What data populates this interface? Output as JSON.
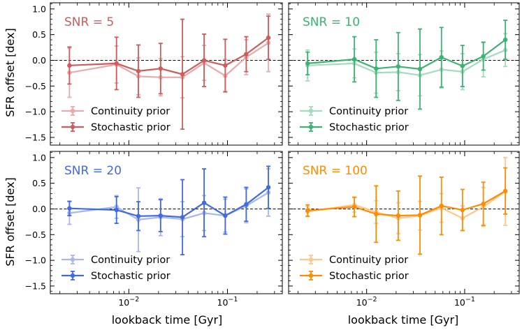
{
  "figure": {
    "ylabel": "SFR offset [dex]",
    "xlabel": "lookback time [Gyr]"
  },
  "chart_data": [
    {
      "type": "line",
      "panel_label": "SNR = 5",
      "xscale": "log",
      "xlim": [
        0.0016,
        0.36
      ],
      "ylim": [
        -1.65,
        1.12
      ],
      "reference_line_y": 0,
      "grid": false,
      "legend_position": "lower-left",
      "x": [
        0.0025,
        0.0075,
        0.0125,
        0.021,
        0.035,
        0.058,
        0.095,
        0.155,
        0.26
      ],
      "series": [
        {
          "name": "Continuity prior",
          "color": "#e8aaaa",
          "values": [
            -0.24,
            -0.08,
            -0.31,
            -0.33,
            -0.33,
            -0.05,
            -0.3,
            0.06,
            0.34
          ],
          "errors": [
            0.48,
            0.36,
            0.36,
            0.36,
            0.4,
            0.34,
            0.32,
            0.34,
            0.56
          ]
        },
        {
          "name": "Stochastic prior",
          "color": "#cd5c5c",
          "values": [
            -0.1,
            -0.06,
            -0.21,
            -0.16,
            -0.27,
            0.0,
            -0.1,
            0.12,
            0.44
          ],
          "errors": [
            0.36,
            0.51,
            0.51,
            0.49,
            1.07,
            0.51,
            0.51,
            0.34,
            0.42
          ]
        }
      ]
    },
    {
      "type": "line",
      "panel_label": "SNR = 10",
      "xscale": "log",
      "xlim": [
        0.0016,
        0.36
      ],
      "ylim": [
        -1.65,
        1.12
      ],
      "reference_line_y": 0,
      "grid": false,
      "legend_position": "lower-left",
      "x": [
        0.0025,
        0.0075,
        0.0125,
        0.021,
        0.035,
        0.058,
        0.095,
        0.155,
        0.26
      ],
      "series": [
        {
          "name": "Continuity prior",
          "color": "#a3dbbd",
          "values": [
            -0.1,
            -0.06,
            -0.24,
            -0.23,
            -0.29,
            -0.18,
            -0.22,
            0.02,
            0.2
          ],
          "errors": [
            0.3,
            0.28,
            0.4,
            0.36,
            0.4,
            0.36,
            0.35,
            0.34,
            0.32
          ]
        },
        {
          "name": "Stochastic prior",
          "color": "#3cb371",
          "values": [
            -0.06,
            0.02,
            -0.16,
            -0.12,
            -0.17,
            0.06,
            -0.11,
            0.08,
            0.4
          ],
          "errors": [
            0.22,
            0.44,
            0.56,
            0.66,
            0.78,
            0.58,
            0.4,
            0.27,
            0.38
          ]
        }
      ]
    },
    {
      "type": "line",
      "panel_label": "SNR = 20",
      "xscale": "log",
      "xlim": [
        0.0016,
        0.36
      ],
      "ylim": [
        -1.65,
        1.12
      ],
      "reference_line_y": 0,
      "grid": false,
      "legend_position": "lower-left",
      "x": [
        0.0025,
        0.0075,
        0.0125,
        0.021,
        0.035,
        0.058,
        0.095,
        0.155,
        0.26
      ],
      "series": [
        {
          "name": "Continuity prior",
          "color": "#a8b8ec",
          "values": [
            -0.08,
            0.04,
            -0.21,
            -0.16,
            -0.2,
            -0.08,
            -0.13,
            0.06,
            0.32
          ],
          "errors": [
            0.22,
            0.22,
            0.62,
            0.36,
            0.34,
            0.34,
            0.32,
            0.33,
            0.46
          ]
        },
        {
          "name": "Stochastic prior",
          "color": "#4169e1",
          "values": [
            0.01,
            -0.02,
            -0.14,
            -0.13,
            -0.16,
            0.12,
            -0.13,
            0.09,
            0.42
          ],
          "errors": [
            0.14,
            0.26,
            0.28,
            0.31,
            0.73,
            0.66,
            0.36,
            0.33,
            0.41
          ]
        }
      ]
    },
    {
      "type": "line",
      "panel_label": "SNR = 100",
      "xscale": "log",
      "xlim": [
        0.0016,
        0.36
      ],
      "ylim": [
        -1.65,
        1.12
      ],
      "reference_line_y": 0,
      "grid": false,
      "legend_position": "lower-left",
      "x": [
        0.0025,
        0.0075,
        0.0125,
        0.021,
        0.035,
        0.058,
        0.095,
        0.155,
        0.26
      ],
      "series": [
        {
          "name": "Continuity prior",
          "color": "#ffc68a",
          "values": [
            -0.05,
            0.08,
            -0.06,
            -0.18,
            -0.13,
            0.02,
            -0.18,
            0.04,
            0.34
          ],
          "errors": [
            0.1,
            0.14,
            0.22,
            0.3,
            0.28,
            0.28,
            0.24,
            0.38,
            0.66
          ]
        },
        {
          "name": "Stochastic prior",
          "color": "#ff8c00",
          "values": [
            -0.03,
            0.04,
            -0.1,
            -0.13,
            -0.12,
            0.06,
            -0.02,
            0.1,
            0.35
          ],
          "errors": [
            0.11,
            0.19,
            0.55,
            0.48,
            0.76,
            0.56,
            0.4,
            0.42,
            0.45
          ]
        }
      ]
    }
  ]
}
